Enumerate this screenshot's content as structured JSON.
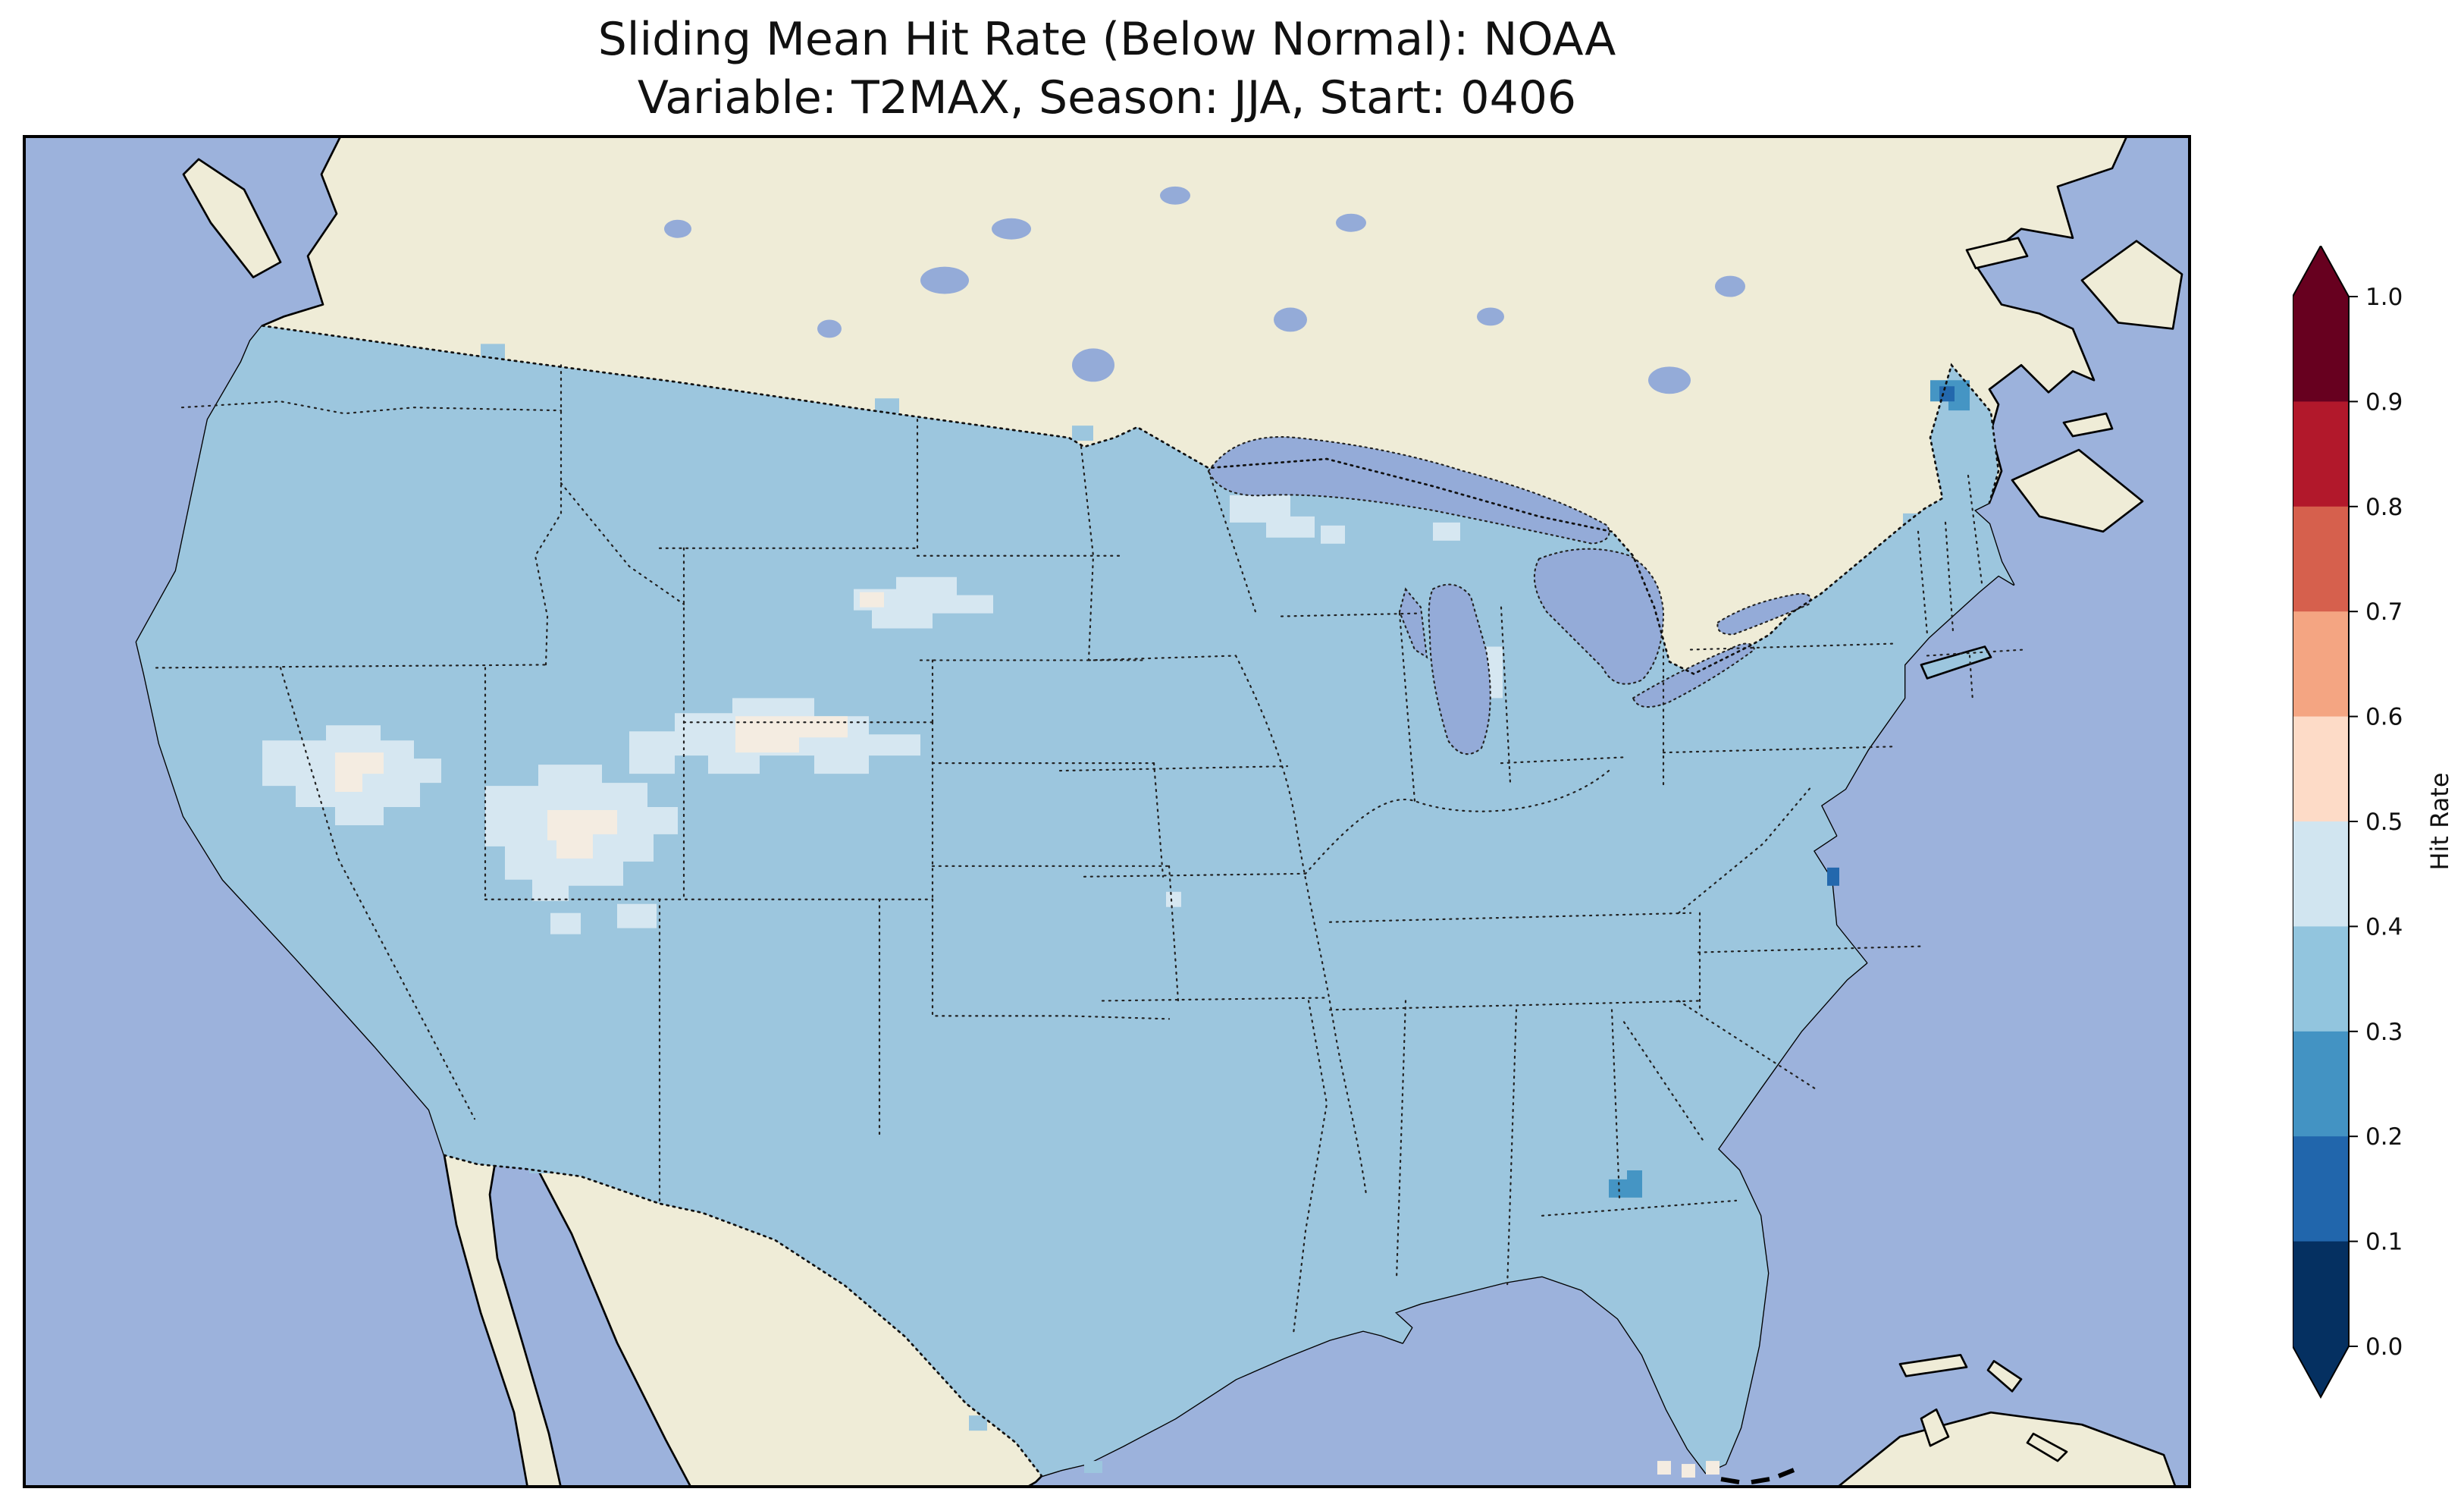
{
  "figure": {
    "title": "Sliding Mean Hit Rate (Below Normal): NOAA",
    "subtitle": "Variable: T2MAX, Season: JJA, Start: 0406"
  },
  "colorbar": {
    "label": "Hit Rate",
    "ticks": [
      "1.0",
      "0.9",
      "0.8",
      "0.7",
      "0.6",
      "0.5",
      "0.4",
      "0.3",
      "0.2",
      "0.1",
      "0.0"
    ],
    "segments_top_to_bottom": [
      "#67001f",
      "#b2182b",
      "#d6604d",
      "#f4a582",
      "#fddbc7",
      "#d1e5f0",
      "#92c5de",
      "#4393c3",
      "#2166ac",
      "#053061"
    ],
    "extend_over_color": "#67001f",
    "extend_under_color": "#053061"
  },
  "colors": {
    "ocean": "#9cb2dc",
    "land": "#efecd7",
    "lake": "#94abd8",
    "map_base": "#9cc6de",
    "bin_04_05": "#d6e7f1",
    "bin_05_06": "#f4ece1",
    "spot_02_03": "#4595c4",
    "spot_01_02": "#2368ad",
    "coast": "#000000"
  },
  "chart_data": {
    "type": "heatmap",
    "title": "Sliding Mean Hit Rate (Below Normal): NOAA",
    "subtitle": "Variable: T2MAX, Season: JJA, Start: 0406",
    "source": "NOAA",
    "variable": "T2MAX",
    "season": "JJA",
    "start": "0406",
    "map_extent": "Contiguous United States (CONUS), with southern Canada, northern Mexico, Gulf of Mexico and western Atlantic visible",
    "colorbar": {
      "label": "Hit Rate",
      "range": [
        0.0,
        1.0
      ],
      "bin_width": 0.1,
      "tick_values": [
        1.0,
        0.9,
        0.8,
        0.7,
        0.6,
        0.5,
        0.4,
        0.3,
        0.2,
        0.1,
        0.0
      ],
      "extend": "both",
      "colormap": "RdBu_r (discrete, 10 bins)",
      "orientation": "vertical-right"
    },
    "regions": [
      {
        "region": "most of the contiguous US",
        "hit_rate_bin": "0.3-0.4"
      },
      {
        "region": "Great Basin / eastern Nevada patches",
        "hit_rate_bin": "0.4-0.5"
      },
      {
        "region": "Utah - Colorado - southern Wyoming band",
        "hit_rate_bin": "0.4-0.6"
      },
      {
        "region": "central South Dakota patch",
        "hit_rate_bin": "0.4-0.5"
      },
      {
        "region": "northern Wisconsin / Michigan patches",
        "hit_rate_bin": "0.4-0.5"
      },
      {
        "region": "northern Maine spot",
        "hit_rate_bin": "0.1-0.3"
      },
      {
        "region": "eastern Georgia spot",
        "hit_rate_bin": "0.2-0.3"
      },
      {
        "region": "Chesapeake coast cell",
        "hit_rate_bin": "0.1-0.2"
      },
      {
        "region": "Florida Keys cells",
        "hit_rate_bin": "0.5-0.6"
      }
    ],
    "grid": "coarse lat-lon cells (pixelated patch edges)",
    "boundaries": "solid coastlines; dotted US state and national borders"
  }
}
